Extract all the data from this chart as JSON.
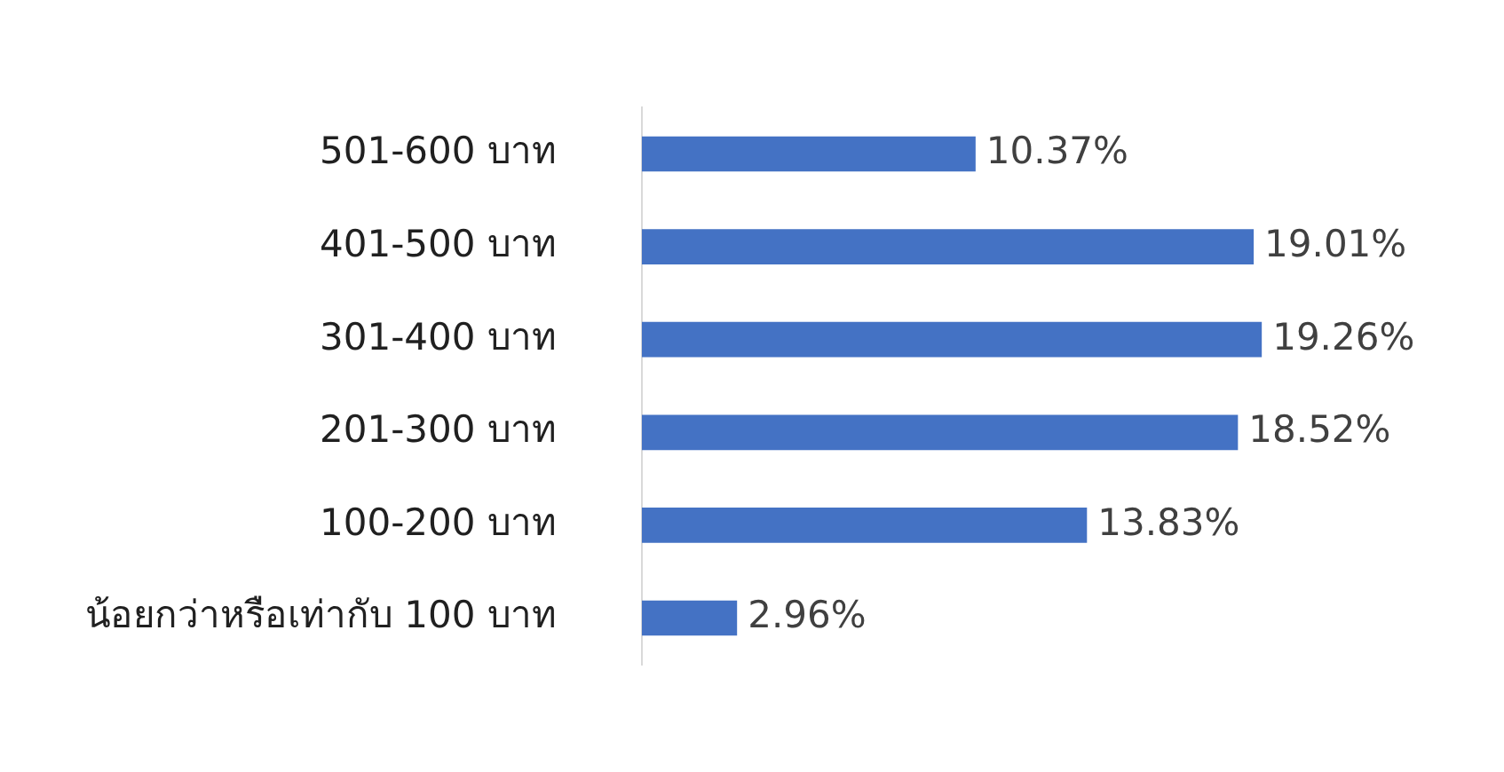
{
  "chart_data": {
    "type": "bar",
    "orientation": "horizontal",
    "categories": [
      "501-600 บาท",
      "401-500 บาท",
      "301-400 บาท",
      "201-300 บาท",
      "100-200 บาท",
      "น้อยกว่าหรือเท่ากับ 100 บาท"
    ],
    "values": [
      10.37,
      19.01,
      19.26,
      18.52,
      13.83,
      2.96
    ],
    "value_labels": [
      "10.37%",
      "19.01%",
      "19.26%",
      "18.52%",
      "13.83%",
      "2.96%"
    ],
    "color": "#4472c4"
  }
}
